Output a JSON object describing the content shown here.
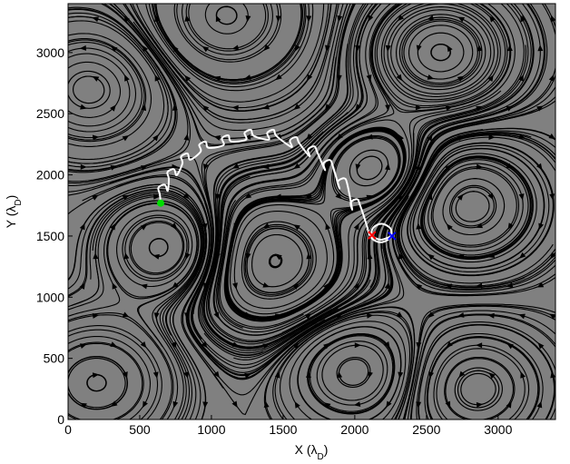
{
  "chart_data": {
    "type": "trajectory",
    "xlabel": [
      "X (λ",
      "D",
      ")"
    ],
    "ylabel": [
      "Y (λ",
      "D",
      ")"
    ],
    "xlim": [
      0,
      3400
    ],
    "ylim": [
      0,
      3400
    ],
    "xticks": [
      0,
      500,
      1000,
      1500,
      2000,
      2500,
      3000
    ],
    "yticks": [
      0,
      500,
      1000,
      1500,
      2000,
      2500,
      3000
    ],
    "background": "#808080",
    "series": [
      {
        "color": "#ffffff",
        "x": [
          646,
          640,
          630,
          675,
          695,
          703,
          693,
          738,
          758,
          798,
          788,
          833,
          853,
          925,
          915,
          960,
          980,
          1083,
          1073,
          1118,
          1138,
          1241,
          1231,
          1276,
          1296,
          1399,
          1389,
          1434,
          1454,
          1558,
          1548,
          1593,
          1613,
          1684,
          1674,
          1719,
          1739,
          1792,
          1782,
          1827,
          1847,
          1893,
          1883,
          1928,
          1948,
          1982,
          1972,
          2017,
          2037,
          2080,
          2100,
          2130,
          2190,
          2250,
          2250,
          2190,
          2130,
          2120,
          2180,
          2259
        ],
        "y": [
          1769,
          1840,
          1895,
          1920,
          1870,
          1967,
          2022,
          2047,
          1997,
          2094,
          2149,
          2174,
          2124,
          2191,
          2246,
          2271,
          2221,
          2243,
          2298,
          2323,
          2273,
          2288,
          2343,
          2368,
          2318,
          2288,
          2343,
          2368,
          2318,
          2228,
          2283,
          2308,
          2258,
          2153,
          2208,
          2233,
          2183,
          2041,
          2096,
          2121,
          2071,
          1892,
          1947,
          1972,
          1922,
          1721,
          1776,
          1801,
          1751,
          1600,
          1520,
          1470,
          1450,
          1490,
          1560,
          1600,
          1570,
          1507,
          1470,
          1500
        ]
      }
    ],
    "markers": [
      {
        "x": 646,
        "y": 1769,
        "color": "#00dd00",
        "symbol": "dot"
      },
      {
        "x": 2120,
        "y": 1507,
        "color": "#ff0000",
        "symbol": "x"
      },
      {
        "x": 2259,
        "y": 1500,
        "color": "#0000ff",
        "symbol": "x"
      }
    ]
  }
}
